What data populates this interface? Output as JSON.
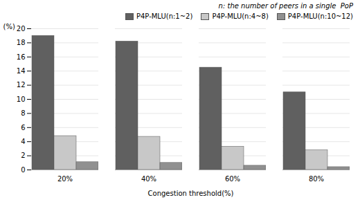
{
  "chart_data": {
    "type": "bar",
    "categories": [
      "20%",
      "40%",
      "60%",
      "80%"
    ],
    "series": [
      {
        "name": "P4P-MLU(n:1~2)",
        "color": "#606060",
        "values": [
          19.0,
          18.2,
          14.5,
          11.0
        ]
      },
      {
        "name": "P4P-MLU(n:4~8)",
        "color": "#c8c8c8",
        "values": [
          4.8,
          4.7,
          3.3,
          2.8
        ]
      },
      {
        "name": "P4P-MLU(n:10~12)",
        "color": "#909090",
        "values": [
          1.1,
          1.0,
          0.6,
          0.4
        ]
      }
    ],
    "xlabel": "Congestion threshold(%)",
    "ylabel": "(%)",
    "ylim": [
      0,
      20
    ],
    "yticks": [
      0,
      2,
      4,
      6,
      8,
      10,
      12,
      14,
      16,
      18,
      20
    ],
    "annotation": "n: the number of peers in a single  PoP",
    "grid": true,
    "legend": "upper right"
  }
}
